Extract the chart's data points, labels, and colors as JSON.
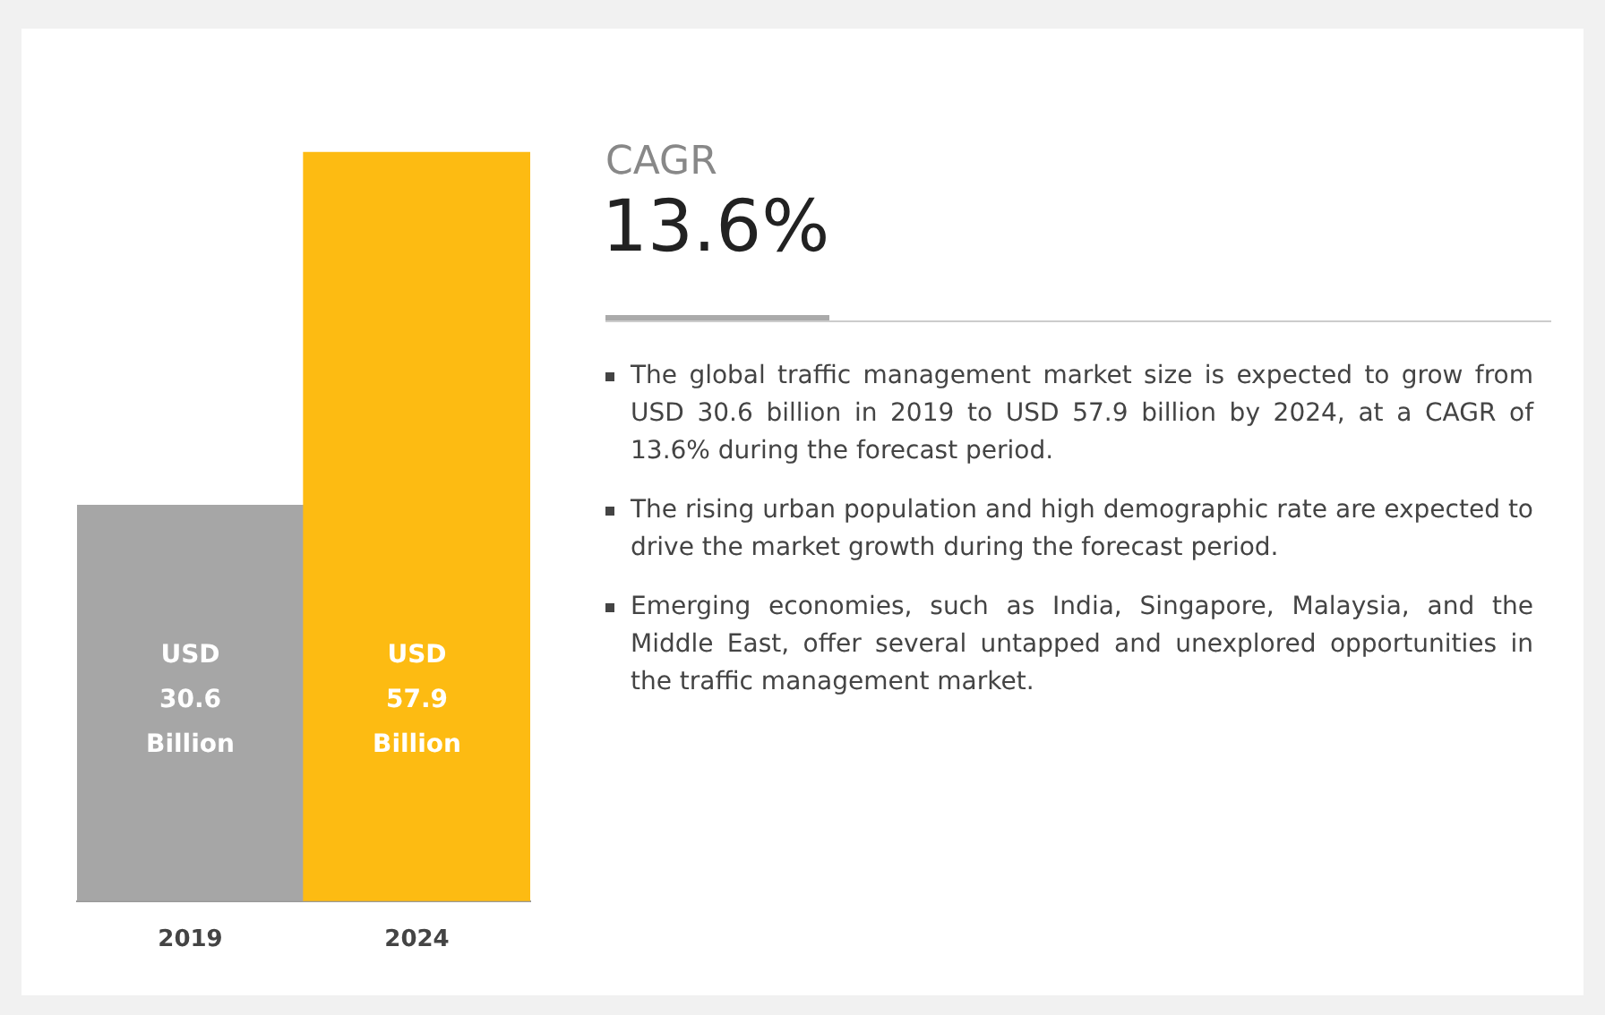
{
  "chart_data": {
    "type": "bar",
    "title": "CAGR",
    "subtitle": "13.6%",
    "categories": [
      "2019",
      "2024"
    ],
    "values": [
      30.6,
      57.9
    ],
    "colors": [
      "#a6a6a6",
      "#fdbb12"
    ],
    "value_labels": [
      "USD\n30.6\nBillion",
      "USD\n57.9\nBillion"
    ],
    "annotations": [
      "The global traffic management market size is expected to grow from USD 30.6 billion in 2019 to USD 57.9 billion by 2024, at a CAGR of 13.6% during the forecast period.",
      "The rising urban population and high demographic rate are expected to drive the market growth during the forecast period.",
      "Emerging economies, such as India, Singapore, Malaysia, and the Middle East, offer several untapped and unexplored opportunities in the traffic management market."
    ],
    "grid": false,
    "legend": false
  }
}
